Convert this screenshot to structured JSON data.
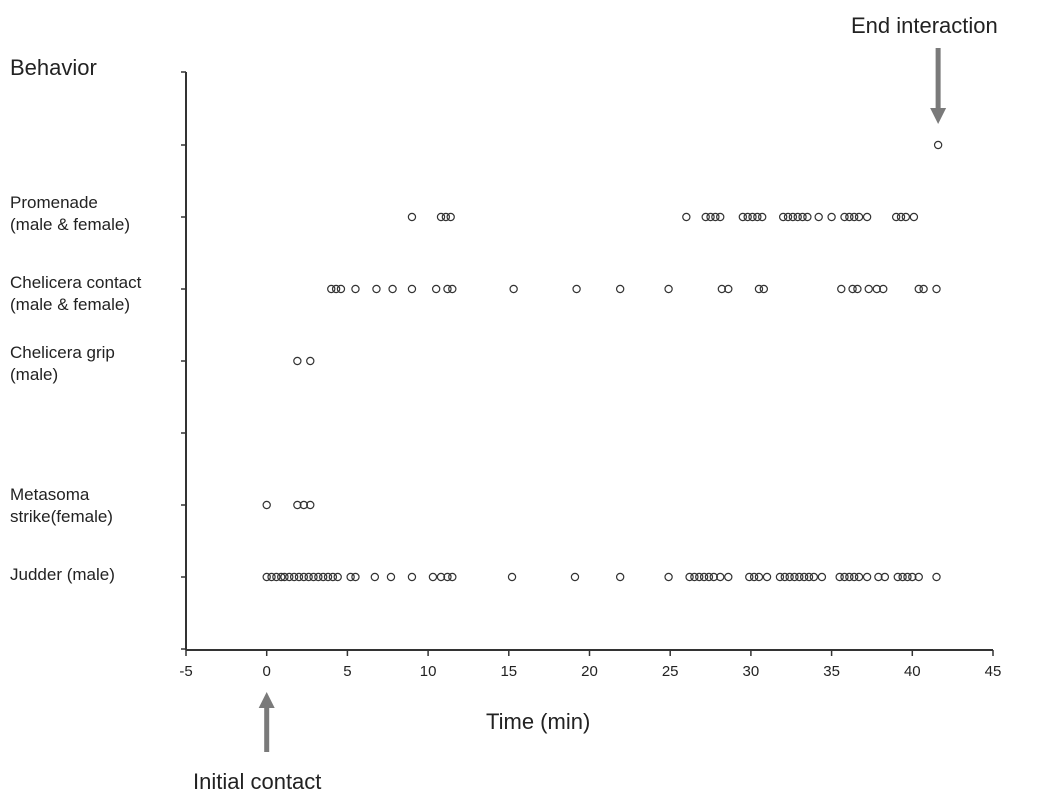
{
  "chart_data": {
    "type": "scatter",
    "ylabel": "Behavior",
    "xlabel": "Time (min)",
    "xlim": [
      -5,
      45
    ],
    "xticks": [
      -5,
      0,
      5,
      10,
      15,
      20,
      25,
      30,
      35,
      40,
      45
    ],
    "grid": false,
    "legend": "none",
    "marker": "open-circle",
    "categories": [
      "Promenade\n(male & female)",
      "Chelicera contact\n(male & female)",
      "Chelicera grip\n(male)",
      "Metasoma\nstrike(female)",
      "Judder (male)"
    ],
    "series": [
      {
        "category_index": 0,
        "x": [
          9.0,
          10.8,
          11.1,
          11.4,
          26.0,
          27.2,
          27.5,
          27.8,
          28.1,
          29.5,
          29.8,
          30.1,
          30.4,
          30.7,
          32.0,
          32.3,
          32.6,
          32.9,
          33.2,
          33.5,
          34.2,
          35.0,
          35.8,
          36.1,
          36.4,
          36.7,
          37.2,
          39.0,
          39.3,
          39.6,
          40.1
        ]
      },
      {
        "category_index": 1,
        "x": [
          4.0,
          4.3,
          4.6,
          5.5,
          6.8,
          7.8,
          9.0,
          10.5,
          11.2,
          11.5,
          15.3,
          19.2,
          21.9,
          24.9,
          28.2,
          28.6,
          30.5,
          30.8,
          35.6,
          36.3,
          36.6,
          37.3,
          37.8,
          38.2,
          40.4,
          40.7,
          41.5
        ]
      },
      {
        "category_index": 2,
        "x": [
          1.9,
          2.7
        ]
      },
      {
        "category_index": 3,
        "x": [
          0.0,
          1.9,
          2.3,
          2.7
        ]
      },
      {
        "category_index": 4,
        "x": [
          0.0,
          0.3,
          0.6,
          0.9,
          1.1,
          1.4,
          1.7,
          2.0,
          2.3,
          2.6,
          2.9,
          3.2,
          3.5,
          3.8,
          4.1,
          4.4,
          5.2,
          5.5,
          6.7,
          7.7,
          9.0,
          10.3,
          10.8,
          11.2,
          11.5,
          15.2,
          19.1,
          21.9,
          24.9,
          26.2,
          26.5,
          26.8,
          27.1,
          27.4,
          27.7,
          28.1,
          28.6,
          29.9,
          30.2,
          30.5,
          31.0,
          31.8,
          32.1,
          32.4,
          32.7,
          33.0,
          33.3,
          33.6,
          33.9,
          34.4,
          35.5,
          35.8,
          36.1,
          36.4,
          36.7,
          37.2,
          37.9,
          38.3,
          39.1,
          39.4,
          39.7,
          40.0,
          40.4,
          41.5
        ]
      },
      {
        "category_index": "end",
        "x": [
          41.6
        ]
      }
    ],
    "annotations": [
      {
        "text": "End interaction",
        "x": 41.6,
        "arrow": "down"
      },
      {
        "text": "Initial contact",
        "x": 0,
        "arrow": "up"
      }
    ],
    "colors": {
      "axis": "#333333",
      "marker": "#333333",
      "arrow": "#7a7a7a"
    }
  }
}
